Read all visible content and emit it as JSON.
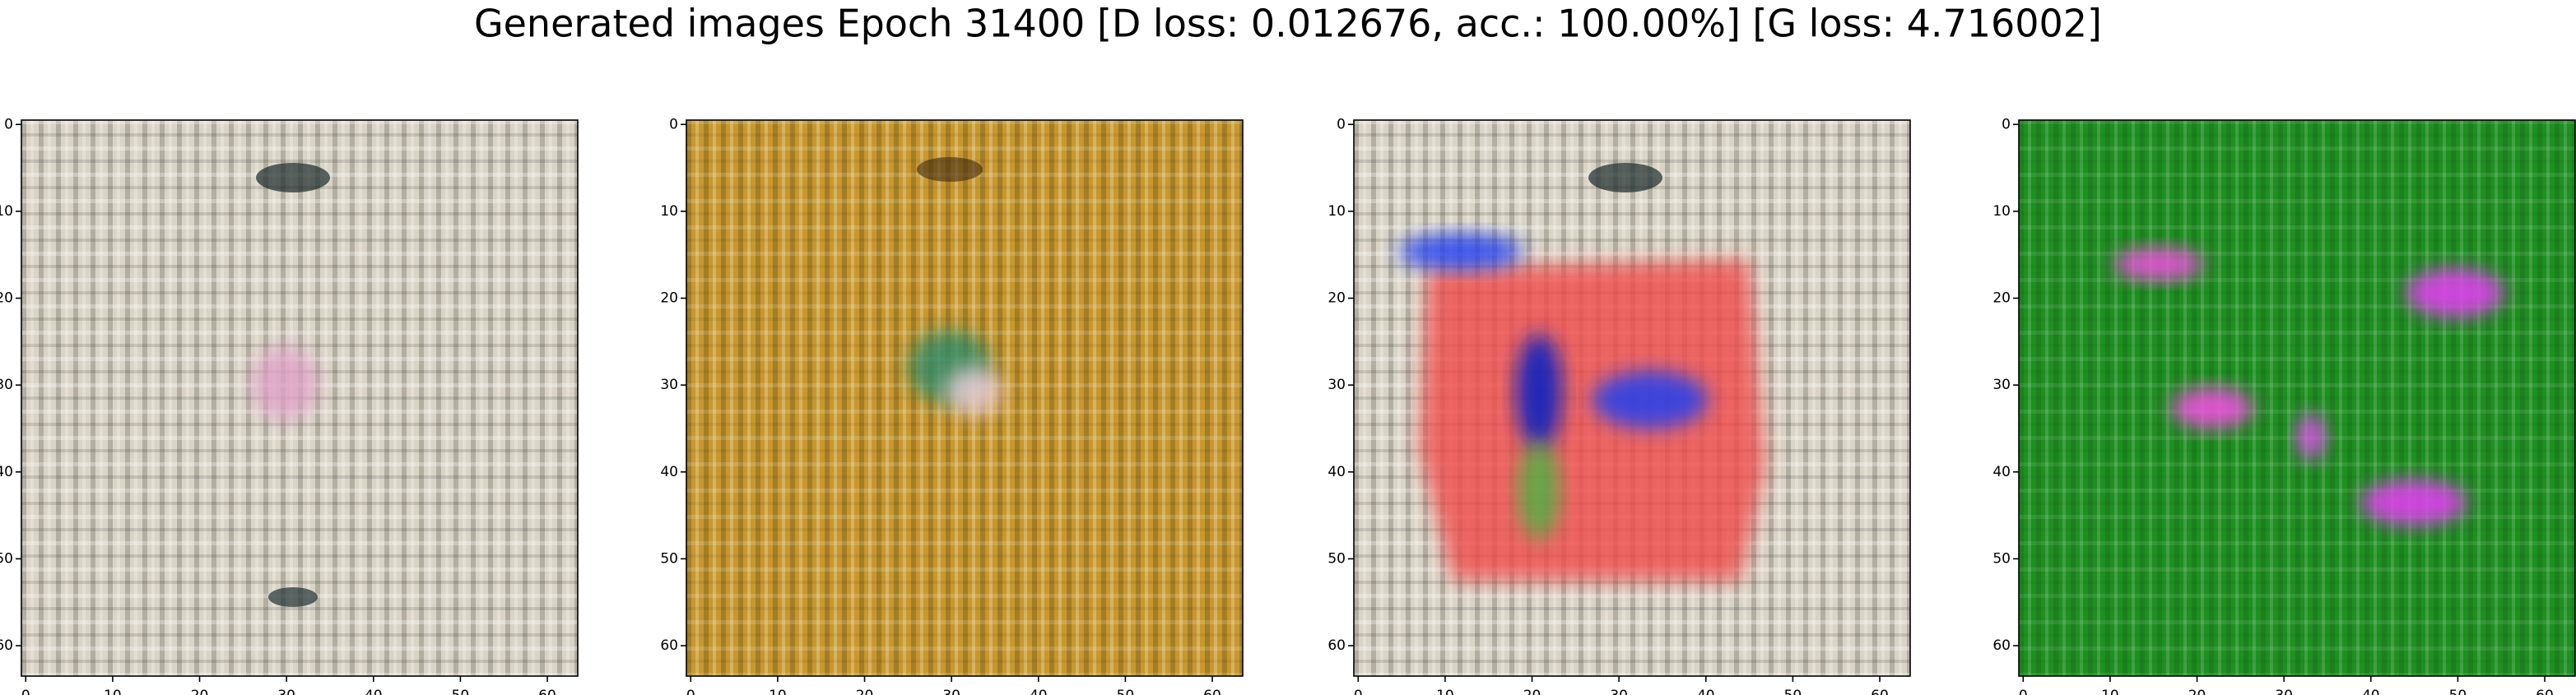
{
  "title": "Generated images Epoch 31400 [D loss: 0.012676, acc.: 100.00%] [G loss: 4.716002]",
  "panels": [
    {
      "xlim": [
        -0.5,
        63.5
      ],
      "ylim": [
        63.5,
        -0.5
      ],
      "xticks": [
        0,
        10,
        20,
        30,
        40,
        50,
        60
      ],
      "yticks": [
        0,
        10,
        20,
        30,
        40,
        50,
        60
      ]
    },
    {
      "xlim": [
        -0.5,
        63.5
      ],
      "ylim": [
        63.5,
        -0.5
      ],
      "xticks": [
        0,
        10,
        20,
        30,
        40,
        50,
        60
      ],
      "yticks": [
        0,
        10,
        20,
        30,
        40,
        50,
        60
      ]
    },
    {
      "xlim": [
        -0.5,
        63.5
      ],
      "ylim": [
        63.5,
        -0.5
      ],
      "xticks": [
        0,
        10,
        20,
        30,
        40,
        50,
        60
      ],
      "yticks": [
        0,
        10,
        20,
        30,
        40,
        50,
        60
      ]
    },
    {
      "xlim": [
        -0.5,
        63.5
      ],
      "ylim": [
        63.5,
        -0.5
      ],
      "xticks": [
        0,
        10,
        20,
        30,
        40,
        50,
        60
      ],
      "yticks": [
        0,
        10,
        20,
        30,
        40,
        50,
        60
      ]
    }
  ]
}
